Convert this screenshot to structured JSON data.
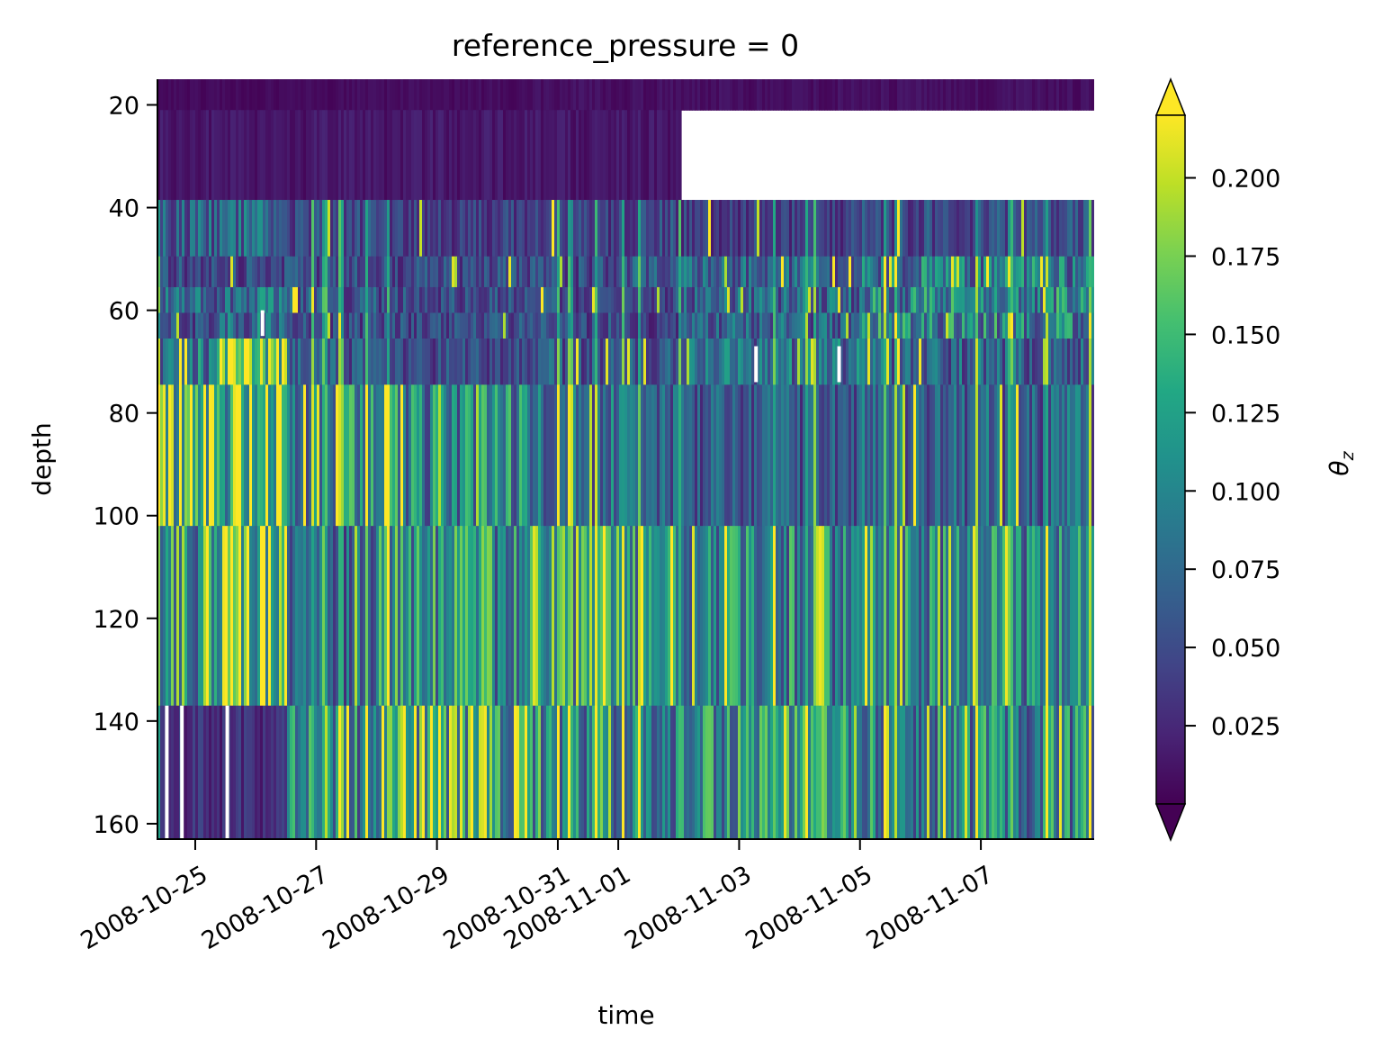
{
  "chart_data": {
    "type": "heatmap",
    "title": "reference_pressure = 0",
    "xlabel": "time",
    "ylabel": "depth",
    "colorbar_label": "θ_z",
    "colormap": "viridis",
    "colorbar_extend": "both",
    "color_range": [
      0.0,
      0.22
    ],
    "x_range": [
      "2008-10-24T09:00",
      "2008-11-08T21:00"
    ],
    "y_range": [
      163,
      15
    ],
    "y_inverted": true,
    "grid": false,
    "x_ticks": [
      "2008-10-25",
      "2008-10-27",
      "2008-10-29",
      "2008-10-31",
      "2008-11-01",
      "2008-11-03",
      "2008-11-05",
      "2008-11-07"
    ],
    "y_ticks": [
      20,
      40,
      60,
      80,
      100,
      120,
      140,
      160
    ],
    "colorbar_ticks": [
      "0.025",
      "0.050",
      "0.075",
      "0.100",
      "0.125",
      "0.150",
      "0.175",
      "0.200"
    ],
    "depth_bins": [
      {
        "top": 15,
        "bottom": 21
      },
      {
        "top": 21,
        "bottom": 38.5,
        "data_end": "2008-11-02T00:00"
      },
      {
        "top": 38.5,
        "bottom": 49.5
      },
      {
        "top": 49.5,
        "bottom": 55.5
      },
      {
        "top": 55.5,
        "bottom": 60.5
      },
      {
        "top": 60.5,
        "bottom": 65.5
      },
      {
        "top": 65.5,
        "bottom": 74.5
      },
      {
        "top": 74.5,
        "bottom": 102
      },
      {
        "top": 102,
        "bottom": 137
      },
      {
        "top": 137,
        "bottom": 163
      }
    ],
    "depth_bin_mean": [
      0.008,
      0.012,
      0.05,
      0.06,
      0.07,
      0.065,
      0.08,
      0.095,
      0.11,
      0.11
    ],
    "time_segments": [
      {
        "start": "2008-10-24T09:00",
        "end": "2008-10-25T09:00",
        "mean": [
          0.005,
          0.012,
          0.07,
          0.05,
          0.07,
          0.05,
          0.1,
          0.17,
          0.12,
          0.03
        ]
      },
      {
        "start": "2008-10-25T09:00",
        "end": "2008-10-26T12:00",
        "mean": [
          0.005,
          0.012,
          0.07,
          0.05,
          0.08,
          0.08,
          0.18,
          0.16,
          0.19,
          0.03
        ]
      },
      {
        "start": "2008-10-26T12:00",
        "end": "2008-10-28T00:00",
        "mean": [
          0.006,
          0.012,
          0.05,
          0.05,
          0.06,
          0.05,
          0.06,
          0.1,
          0.07,
          0.1
        ]
      },
      {
        "start": "2008-10-28T00:00",
        "end": "2008-10-30T12:00",
        "mean": [
          0.006,
          0.012,
          0.04,
          0.05,
          0.05,
          0.05,
          0.05,
          0.1,
          0.11,
          0.14
        ]
      },
      {
        "start": "2008-10-30T12:00",
        "end": "2008-11-01T00:00",
        "mean": [
          0.008,
          0.012,
          0.04,
          0.05,
          0.05,
          0.05,
          0.06,
          0.08,
          0.13,
          0.11
        ]
      },
      {
        "start": "2008-11-01T00:00",
        "end": "2008-11-02T00:00",
        "mean": [
          0.008,
          0.012,
          0.05,
          0.06,
          0.05,
          0.04,
          0.06,
          0.07,
          0.12,
          0.1
        ]
      },
      {
        "start": "2008-11-02T00:00",
        "end": "2008-11-05T00:00",
        "mean": [
          0.008,
          null,
          0.04,
          0.07,
          0.07,
          0.07,
          0.08,
          0.06,
          0.1,
          0.11
        ]
      },
      {
        "start": "2008-11-05T00:00",
        "end": "2008-11-08T21:00",
        "mean": [
          0.008,
          null,
          0.05,
          0.09,
          0.1,
          0.1,
          0.07,
          0.07,
          0.1,
          0.1
        ]
      }
    ],
    "missing_data": [
      {
        "time": "2008-10-26T02:00",
        "depth": [
          60,
          65
        ]
      },
      {
        "time": "2008-11-03T06:00",
        "depth": [
          67,
          74
        ]
      },
      {
        "time": "2008-11-04T15:00",
        "depth": [
          67,
          74
        ]
      },
      {
        "time": "2008-10-24T12:00",
        "depth": [
          137,
          163
        ]
      },
      {
        "time": "2008-10-24T18:00",
        "depth": [
          137,
          163
        ]
      },
      {
        "time": "2008-10-25T12:00",
        "depth": [
          137,
          163
        ]
      }
    ]
  }
}
